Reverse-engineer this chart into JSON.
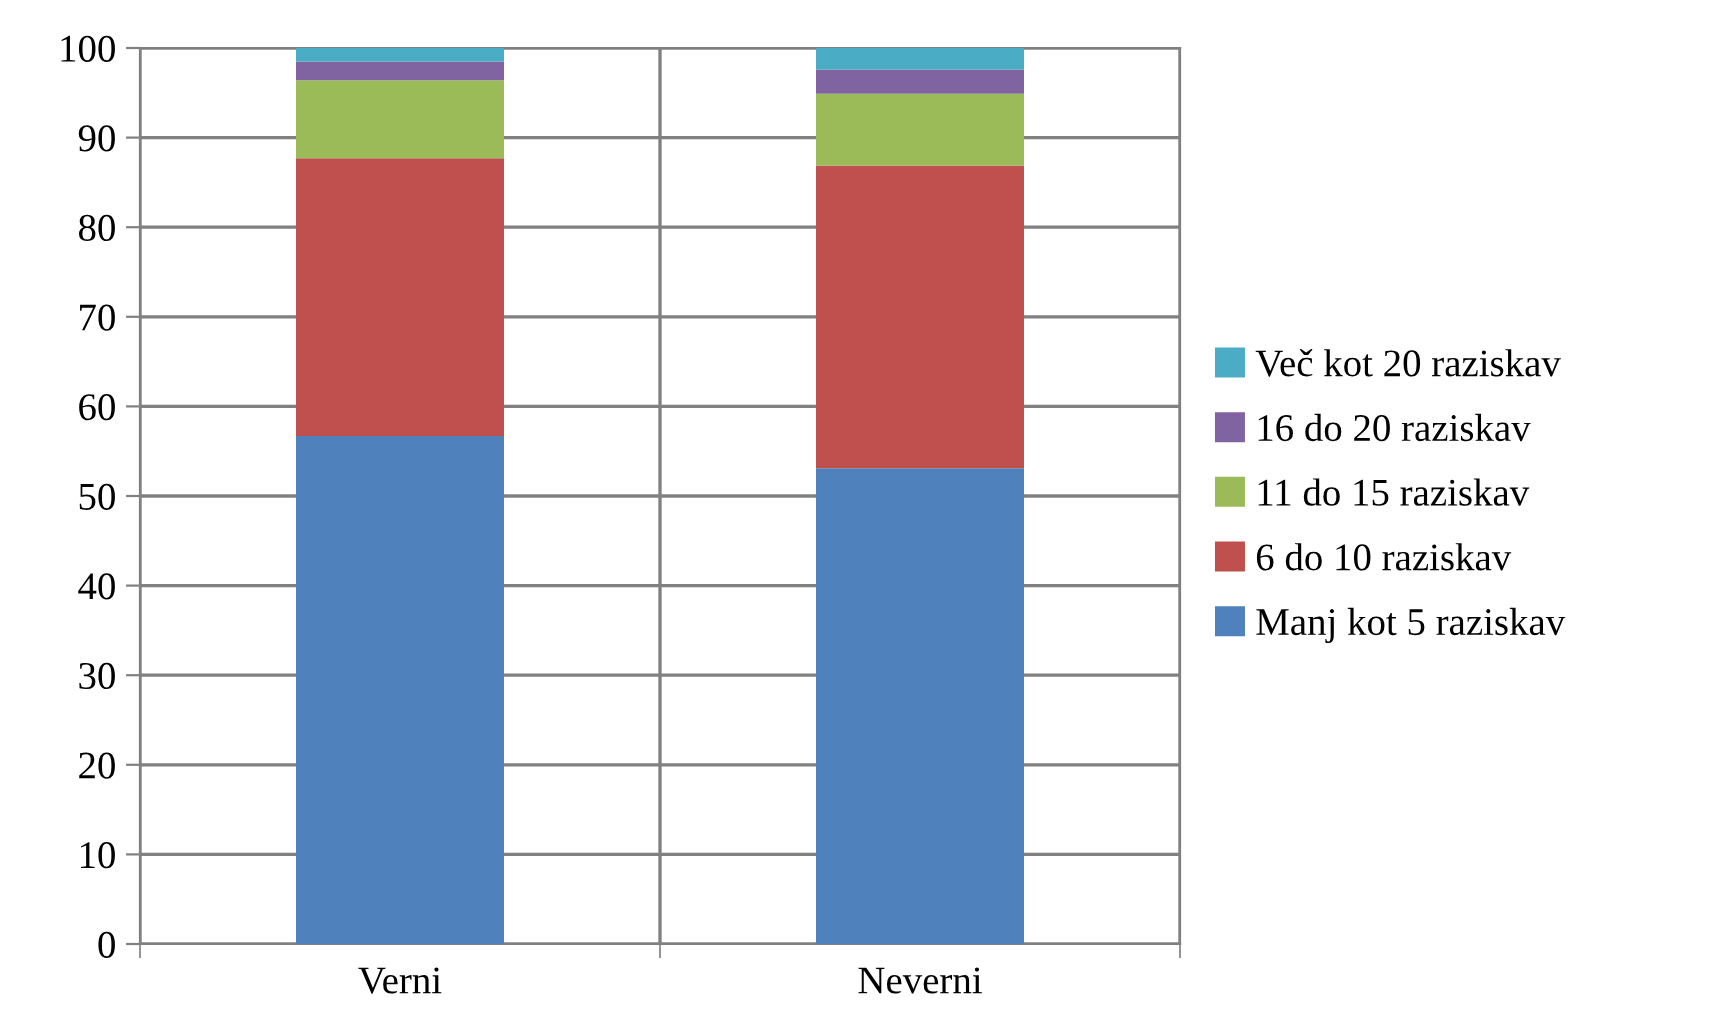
{
  "chart_data": {
    "type": "bar",
    "stacked": true,
    "categories": [
      "Verni",
      "Neverni"
    ],
    "series": [
      {
        "name": "Manj kot 5 raziskav",
        "color": "#4f81bd",
        "values": [
          56.7,
          53.1
        ]
      },
      {
        "name": "6 do 10 raziskav",
        "color": "#c0504d",
        "values": [
          31.0,
          33.8
        ]
      },
      {
        "name": "11 do 15 raziskav",
        "color": "#9bbb59",
        "values": [
          8.7,
          8.0
        ]
      },
      {
        "name": "16 do 20 raziskav",
        "color": "#8064a2",
        "values": [
          2.1,
          2.7
        ]
      },
      {
        "name": "Več kot 20 raziskav",
        "color": "#4bacc6",
        "values": [
          1.5,
          2.4
        ]
      }
    ],
    "ylim": [
      0,
      100
    ],
    "yticks": [
      0,
      10,
      20,
      30,
      40,
      50,
      60,
      70,
      80,
      90,
      100
    ],
    "grid": true,
    "legend": "right"
  }
}
